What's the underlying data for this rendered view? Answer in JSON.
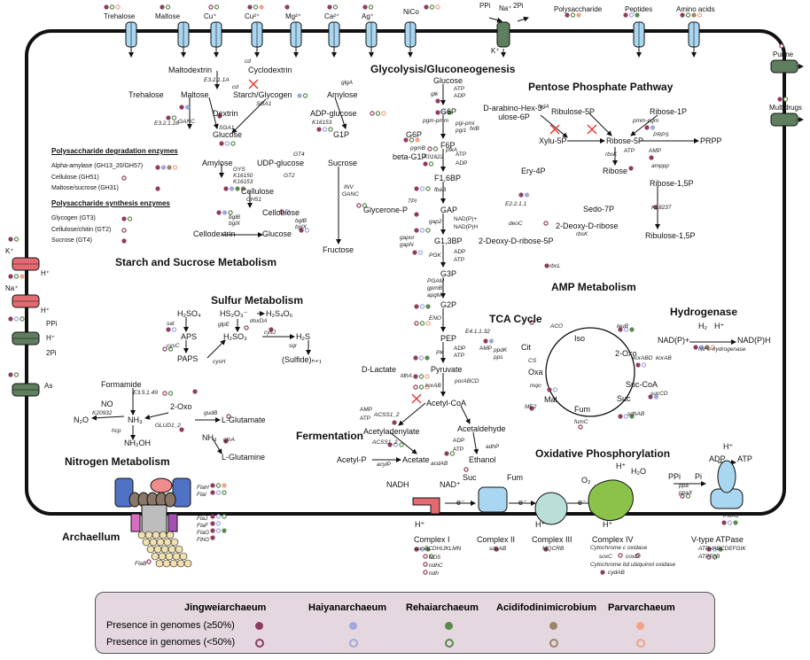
{
  "colors": {
    "jingweiarchaeum": "#8e3d62",
    "haiyanarchaeum": "#9fa9de",
    "rehaiarchaeum": "#5a8a4c",
    "acidifodinimicrobium": "#9b8568",
    "parvarchaeum": "#f0a38a",
    "transporter_blue": "#a9d6f0",
    "transporter_green": "#5e7e5e",
    "transporter_red": "#e46a72"
  },
  "transporters_top": [
    "Trehalose",
    "Maltose",
    "Cu⁺",
    "Cu²⁺",
    "Mg²⁺",
    "Ca²⁺",
    "Ag⁺",
    "NiCo",
    "PPi",
    "Na⁺",
    "2Pi",
    "K⁺",
    "Polysaccharide",
    "Peptides",
    "Amino acids"
  ],
  "transporters_right": [
    "Purine",
    "Multidrugs"
  ],
  "transporters_left": [
    "K⁺",
    "H⁺",
    "Na⁺",
    "H⁺",
    "PPi",
    "H⁺",
    "2Pi",
    "As"
  ],
  "sections": {
    "glycolysis": "Glycolysis/Gluconeogenesis",
    "ppp": "Pentose Phosphate Pathway",
    "starch": "Starch and Sucrose Metabolism",
    "sulfur": "Sulfur Metabolism",
    "amp": "AMP Metabolism",
    "tca": "TCA Cycle",
    "hydrogenase": "Hydrogenase",
    "fermentation": "Fermentation",
    "nitrogen": "Nitrogen Metabolism",
    "oxphos": "Oxidative Phosphorylation",
    "archaellum": "Archaellum"
  },
  "starch": {
    "maltodextrin": "Maltodextrin",
    "cyclodextrin": "Cyclodextrin",
    "trehalose": "Trehalose",
    "maltose": "Maltose",
    "starch_glycogen": "Starch/Glycogen",
    "dextrin": "Dextrin",
    "amylose": "Amylose",
    "adp_glucose": "ADP-glucose",
    "glucose": "Glucose",
    "g1p": "G1P",
    "amylose2": "Amylose",
    "udp_glucose": "UDP-glucose",
    "sucrose": "Sucrose",
    "cellulose": "Cellulose",
    "cellobiose": "Cellobiose",
    "cellodextrin": "Cellodextrin",
    "glucose2": "Glucose",
    "fructose": "Fructose",
    "enz_cd1": "cd",
    "enz_e32111a": "E3.2.1.1A",
    "enz_cd2": "cd",
    "enz_sga1a": "SGA1",
    "enz_glgA": "glgA",
    "enz_ganc": "GANC",
    "enz_sga1b": "SGA1",
    "enz_e32128": "E3.2.1.28",
    "enz_k16153": "K16153",
    "enz_gys": "GYS",
    "enz_k16150": "K16150",
    "enz_k16153b": "K16153",
    "enz_gt2": "GT2",
    "enz_gt4": "GT4",
    "enz_inv": "INV",
    "enz_ganc2": "GANC",
    "enz_gh51": "GH51",
    "enz_bglB": "bglB",
    "enz_bglX": "bglX",
    "enz_bglB2": "bglB",
    "enz_bglX2": "bglX"
  },
  "enzyme_lists": {
    "degradation_title": "Polysaccharide degradation enzymes",
    "degradation": [
      "Alpha-amylase (GH13_20/GH57)",
      "Cellulose (GH51)",
      "Maltose/sucrose (GH31)"
    ],
    "synthesis_title": "Polysaccharide synthesis enzymes",
    "synthesis": [
      "Glycogen (GT3)",
      "Cellulose/chitin (GT2)",
      "Sucrose (GT4)"
    ]
  },
  "glycolysis": {
    "glucose": "Glucose",
    "atp": "ATP",
    "adp": "ADP",
    "glk": "glk",
    "g6p": "G6P",
    "pgm": "pgm-pmm",
    "pgi": "pgi-pmi",
    "pgi2": "pgi1",
    "g6p2": "G6P",
    "beta_g1p": "beta-G1P",
    "pgmB": "pgmB",
    "f6p": "F6P",
    "k01622": "K01622",
    "pfk": "pfkA",
    "f16bp": "F1,6BP",
    "fbaB": "fbaB",
    "tpi": "TPI",
    "glycerone": "Glycerone-P",
    "gap": "GAP",
    "nadp": "NAD(P)+",
    "nadph": "NAD(P)H",
    "gap2": "gap2",
    "g13bp": "G1,3BP",
    "gapor": "gapor",
    "gapN": "gapN",
    "pgk": "PGK",
    "g3p": "G3P",
    "pgam": "PGAM",
    "gpmB": "gpmB",
    "apgM": "apgM",
    "g2p": "G2P",
    "eno": "ENO",
    "pep": "PEP",
    "ppdk": "ppdK",
    "pps": "pps",
    "pk": "PK",
    "amp": "AMP",
    "pyruvate": "Pyruvate",
    "dlactate": "D-Lactate",
    "ldhA": "ldhA",
    "korab": "korAB",
    "porabcd": "porABCD",
    "acetylcoa": "Acetyl-CoA"
  },
  "ppp": {
    "arabino": "D-arabino-Hex-3-ulose-6P",
    "fxlB": "fxlB",
    "hxlA": "hxlA",
    "ribulose5p": "Ribulose-5P",
    "ribose1p": "Ribose-1P",
    "pmm": "pmm-pgm",
    "xylu5p": "Xylu-5P",
    "ribose5p": "Ribose-5P",
    "prps": "PRPS",
    "prpp": "PRPP",
    "rbsK": "rbsK",
    "ribose": "Ribose",
    "ery4p": "Ery-4P",
    "sedo7p": "Sedo-7P",
    "e4111": "E2.2.1.1",
    "deoC": "deoC",
    "deoxyribose": "2-Deoxy-D-ribose",
    "rbsK2": "rbsK",
    "deoxyribose5p": "2-Deoxy-D-ribose-5P"
  },
  "amp": {
    "atp": "ATP",
    "amp": "AMP",
    "ampp": "amppp",
    "ribose15p": "Ribose-1,5P",
    "k18237": "K18237",
    "ribulose15p": "Ribulose-1,5P",
    "rbcL": "rbcL"
  },
  "sulfur": {
    "h2so4": "H₂SO₄",
    "sat": "sat",
    "aps": "APS",
    "cysC": "cysC",
    "paps": "PAPS",
    "cysH": "cysH",
    "hso3": "HS₂O₃⁻",
    "doxDA": "doxDA",
    "h2s4o6": "H₂S₄O₆",
    "glpE": "glpE",
    "h2so3": "H₂SO₃",
    "cysJ": "cysJ",
    "sqr": "sqr",
    "h2s": "H₂S",
    "sulfide": "(Sulfide)ₙ₊₁"
  },
  "nitrogen": {
    "formamide": "Formamide",
    "e3549": "E3.5.1.49",
    "no": "NO",
    "k20932": "K20932",
    "n2o": "N₂O",
    "nh3": "NH₃",
    "hcp": "hcp",
    "nh2oh": "NH₂OH",
    "oxo": "2-Oxo",
    "gudB": "gudB",
    "glud12": "GLUD1_2",
    "lglutamate": "L-Glutamate",
    "nh3b": "NH₃",
    "glnA": "glnA",
    "lglutamine": "L-Glutamine"
  },
  "tca": {
    "cit": "Cit",
    "iso": "Iso",
    "oxo": "2-Oxo",
    "succoa": "Suc-CoA",
    "suc": "Suc",
    "fum": "Fum",
    "mal": "Mal",
    "oxa": "Oxa",
    "aco": "ACO",
    "leuB": "leuB",
    "korABD": "korABD",
    "korAB": "korAB",
    "sucCD": "sucCD",
    "sdhAB": "sdhAB",
    "fumC": "fumC",
    "mqo": "mqo",
    "cs": "CS",
    "me2": "ME2",
    "e41132": "E4.1.1.32"
  },
  "hydrogenase": {
    "h2": "H₂",
    "hplus": "H⁺",
    "nadp": "NAD(P)+",
    "nadph": "NAD(P)H",
    "enzyme": "NiFe-hydrogenase"
  },
  "fermentation": {
    "acetyladenylate": "Acetyladenylate",
    "acss1": "ACSS1_2",
    "acss1b": "ACSS1_2",
    "amp": "AMP",
    "atp": "ATP",
    "acetylp": "Acetyl-P",
    "acetate": "Acetate",
    "acylp": "acylP",
    "acdAB": "acdAB",
    "acetaldehyde": "Acetaldehyde",
    "adp": "ADP",
    "atp2": "ATP",
    "adhp": "adhP",
    "ethanol": "Ethanol"
  },
  "oxphos": {
    "nadh": "NADH",
    "nadplus": "NAD⁺",
    "suc": "Suc",
    "fum": "Fum",
    "o2": "O₂",
    "h2o": "H₂O",
    "ppi": "PPi",
    "pi": "Pi",
    "adp": "ADP",
    "atp": "ATP",
    "hplus": "H⁺",
    "eminus": "e⁻",
    "c1": "Complex I",
    "c2": "Complex II",
    "c3": "Complex III",
    "c4": "Complex IV",
    "vatp": "V-type ATPase",
    "c1_genes": [
      "nuoBCDHIJKLMN",
      "ND5",
      "ndhC",
      "ndh"
    ],
    "c2_genes": [
      "sdhAB"
    ],
    "c3_genes": [
      "MQCRB"
    ],
    "c4_genes": [
      "Cytochrome c oxidase",
      "soxC",
      "coxD",
      "Cytochrome bd ubiquinol oxidase",
      "cydAB"
    ],
    "v_genes": [
      "ATPVABCDEFGIK",
      "ATPF0B"
    ],
    "ppa": "ppa",
    "ppaX": "ppaX",
    "pma1": "PMA1"
  },
  "archaellum": {
    "flaH": "FlaH",
    "flaI": "FlaI",
    "flaJ": "FlaJ",
    "flaF": "FlaF",
    "flaG": "FlaG",
    "flhG": "FlhG",
    "flaB": "FlaB",
    "c": "C",
    "d": "D",
    "e": "E",
    "j": "J",
    "g": "G",
    "f": "F"
  },
  "legend": {
    "headers": [
      "Jingweiarchaeum",
      "Haiyanarchaeum",
      "Rehaiarchaeum",
      "Acidifodinimicrobium",
      "Parvarchaeum"
    ],
    "row1": "Presence in genomes (≥50%)",
    "row2": "Presence in genomes (<50%)"
  }
}
